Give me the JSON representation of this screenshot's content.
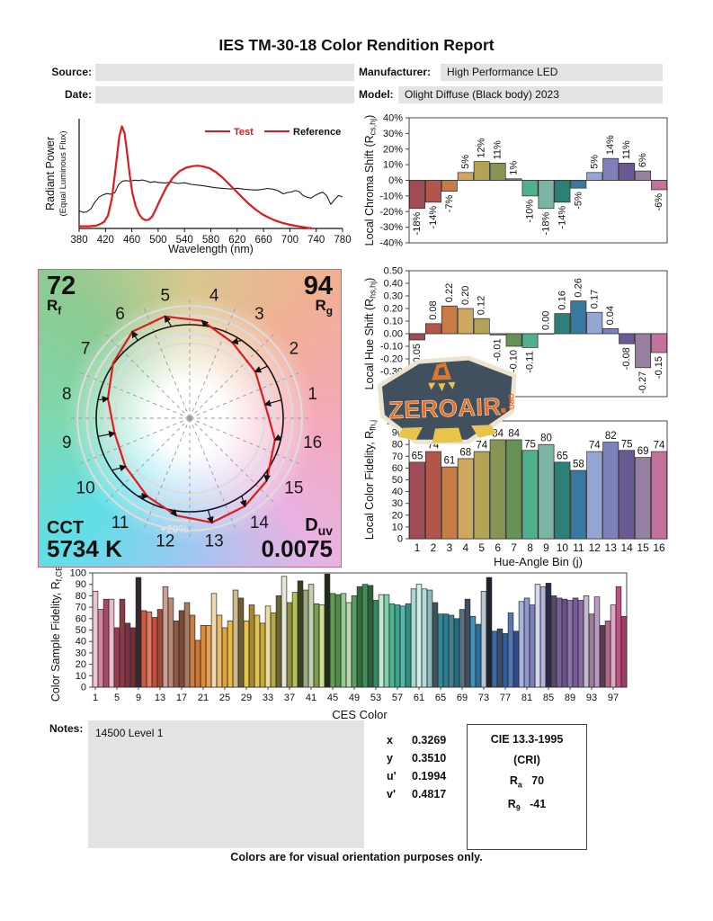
{
  "header": {
    "title": "IES TM-30-18 Color Rendition Report",
    "source_label": "Source:",
    "date_label": "Date:",
    "manufacturer_label": "Manufacturer:",
    "manufacturer": "High Performance LED",
    "model_label": "Model:",
    "model": "Olight Diffuse (Black body) 2023",
    "source_value": "",
    "date_value": ""
  },
  "watermark": {
    "line1": "ZEROAIR",
    "line2": "ORG"
  },
  "cvg": {
    "rf_value": "72",
    "r_letter": "R",
    "rf_sub": "f",
    "rg_value": "94",
    "rg_sub": "g",
    "cct_label": "CCT",
    "cct_value": "5734 K",
    "d_letter": "D",
    "duv_sub": "uv",
    "duv_value": "0.0075",
    "ring_label": "+20%",
    "bin_numbers": [
      "1",
      "2",
      "3",
      "4",
      "5",
      "6",
      "7",
      "8",
      "9",
      "10",
      "11",
      "12",
      "13",
      "14",
      "15",
      "16"
    ]
  },
  "hue_bin_colors": [
    "#a04b58",
    "#b25649",
    "#c67c44",
    "#cfa75e",
    "#b2a355",
    "#869455",
    "#679255",
    "#50b08b",
    "#7ab4a4",
    "#2d8077",
    "#39799f",
    "#95a6d4",
    "#7e80ba",
    "#6a5a94",
    "#97809f",
    "#c3729b"
  ],
  "notes": {
    "label": "Notes:",
    "text": "14500 Level 1"
  },
  "chromaticity": {
    "rows": [
      {
        "label": "x",
        "value": "0.3269"
      },
      {
        "label": "y",
        "value": "0.3510"
      },
      {
        "label": "u'",
        "value": "0.1994"
      },
      {
        "label": "v'",
        "value": "0.4817"
      }
    ]
  },
  "cie_box": {
    "title": "CIE 13.3-1995",
    "subtitle": "(CRI)",
    "ra_base": "R",
    "ra_sub": "a",
    "ra_value": "70",
    "r9_base": "R",
    "r9_sub": "9",
    "r9_value": "-41"
  },
  "footer": "Colors are for visual orientation purposes only.",
  "chart_data": [
    {
      "id": "spd",
      "type": "line",
      "xlabel": "Wavelength (nm)",
      "ylabel_line1": "Radiant Power",
      "ylabel_line2": "(Equal Luminous Flux)",
      "xlim": [
        380,
        780
      ],
      "xticks": [
        380,
        420,
        460,
        500,
        540,
        580,
        620,
        660,
        700,
        740,
        780
      ],
      "legend": [
        {
          "name": "Test",
          "color": "#e31a1c"
        },
        {
          "name": "Reference",
          "color": "#e31a1c",
          "text_color": "#111111"
        }
      ],
      "series": [
        {
          "name": "Test",
          "color": "#e31a1c",
          "width": 2.2,
          "points": [
            [
              380,
              0.02
            ],
            [
              395,
              0.02
            ],
            [
              405,
              0.025
            ],
            [
              412,
              0.04
            ],
            [
              418,
              0.06
            ],
            [
              424,
              0.12
            ],
            [
              430,
              0.28
            ],
            [
              436,
              0.58
            ],
            [
              441,
              0.84
            ],
            [
              445,
              0.93
            ],
            [
              449,
              0.87
            ],
            [
              453,
              0.68
            ],
            [
              457,
              0.48
            ],
            [
              461,
              0.32
            ],
            [
              466,
              0.2
            ],
            [
              471,
              0.13
            ],
            [
              476,
              0.09
            ],
            [
              481,
              0.075
            ],
            [
              486,
              0.08
            ],
            [
              491,
              0.11
            ],
            [
              496,
              0.17
            ],
            [
              502,
              0.25
            ],
            [
              512,
              0.37
            ],
            [
              522,
              0.46
            ],
            [
              532,
              0.52
            ],
            [
              542,
              0.553
            ],
            [
              552,
              0.567
            ],
            [
              560,
              0.572
            ],
            [
              568,
              0.565
            ],
            [
              578,
              0.548
            ],
            [
              588,
              0.512
            ],
            [
              598,
              0.462
            ],
            [
              608,
              0.402
            ],
            [
              618,
              0.342
            ],
            [
              628,
              0.28
            ],
            [
              638,
              0.222
            ],
            [
              648,
              0.172
            ],
            [
              658,
              0.13
            ],
            [
              668,
              0.098
            ],
            [
              678,
              0.072
            ],
            [
              688,
              0.052
            ],
            [
              698,
              0.037
            ],
            [
              708,
              0.025
            ],
            [
              718,
              0.015
            ],
            [
              728,
              0.006
            ],
            [
              734,
              0.002
            ]
          ]
        },
        {
          "name": "Reference",
          "color": "#1c1c1c",
          "width": 1.1,
          "points": [
            [
              380,
              0.16
            ],
            [
              386,
              0.147
            ],
            [
              392,
              0.152
            ],
            [
              398,
              0.18
            ],
            [
              404,
              0.24
            ],
            [
              410,
              0.285
            ],
            [
              416,
              0.305
            ],
            [
              422,
              0.318
            ],
            [
              428,
              0.312
            ],
            [
              434,
              0.325
            ],
            [
              440,
              0.4
            ],
            [
              446,
              0.432
            ],
            [
              452,
              0.436
            ],
            [
              458,
              0.43
            ],
            [
              464,
              0.44
            ],
            [
              470,
              0.436
            ],
            [
              476,
              0.442
            ],
            [
              482,
              0.434
            ],
            [
              488,
              0.42
            ],
            [
              494,
              0.427
            ],
            [
              500,
              0.42
            ],
            [
              510,
              0.415
            ],
            [
              520,
              0.422
            ],
            [
              530,
              0.41
            ],
            [
              540,
              0.416
            ],
            [
              550,
              0.402
            ],
            [
              560,
              0.395
            ],
            [
              570,
              0.388
            ],
            [
              580,
              0.378
            ],
            [
              590,
              0.37
            ],
            [
              600,
              0.364
            ],
            [
              610,
              0.36
            ],
            [
              620,
              0.366
            ],
            [
              630,
              0.358
            ],
            [
              640,
              0.353
            ],
            [
              650,
              0.35
            ],
            [
              658,
              0.356
            ],
            [
              666,
              0.365
            ],
            [
              674,
              0.358
            ],
            [
              682,
              0.344
            ],
            [
              690,
              0.315
            ],
            [
              696,
              0.327
            ],
            [
              702,
              0.332
            ],
            [
              708,
              0.345
            ],
            [
              714,
              0.336
            ],
            [
              720,
              0.3
            ],
            [
              726,
              0.285
            ],
            [
              732,
              0.276
            ],
            [
              738,
              0.3
            ],
            [
              744,
              0.318
            ],
            [
              750,
              0.33
            ],
            [
              756,
              0.298
            ],
            [
              762,
              0.22
            ],
            [
              768,
              0.263
            ],
            [
              774,
              0.3
            ],
            [
              780,
              0.287
            ]
          ]
        }
      ]
    },
    {
      "id": "local_chroma_shift",
      "type": "bar",
      "ylabel_pre": "Local Chroma Shift (R",
      "ylabel_sub": "cs,hj",
      "ylabel_post": ")",
      "ylim": [
        -40,
        40
      ],
      "ytick_step": 10,
      "ytick_suffix": "%",
      "categories": [
        1,
        2,
        3,
        4,
        5,
        6,
        7,
        8,
        9,
        10,
        11,
        12,
        13,
        14,
        15,
        16
      ],
      "values": [
        -18,
        -14,
        -7,
        5,
        12,
        11,
        1,
        -10,
        -18,
        -14,
        -5,
        5,
        14,
        11,
        6,
        -6
      ],
      "labels": [
        "-18%",
        "-14%",
        "-7%",
        "5%",
        "12%",
        "11%",
        "1%",
        "-10%",
        "-18%",
        "-14%",
        "-5%",
        "5%",
        "14%",
        "11%",
        "6%",
        "-6%"
      ]
    },
    {
      "id": "local_hue_shift",
      "type": "bar",
      "ylabel_pre": "Local Hue Shift (R",
      "ylabel_sub": "hs,hj",
      "ylabel_post": ")",
      "ylim": [
        -0.5,
        0.5
      ],
      "ytick_step": 0.1,
      "categories": [
        1,
        2,
        3,
        4,
        5,
        6,
        7,
        8,
        9,
        10,
        11,
        12,
        13,
        14,
        15,
        16
      ],
      "values": [
        -0.05,
        0.08,
        0.22,
        0.2,
        0.12,
        -0.01,
        -0.1,
        -0.11,
        0,
        0.16,
        0.26,
        0.17,
        0.04,
        -0.08,
        -0.27,
        -0.15
      ],
      "labels": [
        "-0.05",
        "0.08",
        "0.22",
        "0.20",
        "0.12",
        "-0.01",
        "-0.10",
        "-0.11",
        "0.00",
        "0.16",
        "0.26",
        "0.17",
        "0.04",
        "-0.08",
        "-0.27",
        "-0.15"
      ]
    },
    {
      "id": "local_color_fidelity",
      "type": "bar",
      "ylabel_pre": "Local Color Fidelity, R",
      "ylabel_sub": "fh,j",
      "xlabel": "Hue-Angle Bin (j)",
      "ylim": [
        0,
        100
      ],
      "ytick_step": 10,
      "categories": [
        1,
        2,
        3,
        4,
        5,
        6,
        7,
        8,
        9,
        10,
        11,
        12,
        13,
        14,
        15,
        16
      ],
      "values": [
        65,
        74,
        61,
        68,
        74,
        84,
        84,
        75,
        80,
        65,
        58,
        74,
        82,
        75,
        69,
        74
      ]
    },
    {
      "id": "ces_fidelity",
      "type": "bar",
      "ylabel_pre": "Color Sample Fidelity, R",
      "ylabel_sub": "f,CESi",
      "xlabel": "CES Color",
      "ylim": [
        0,
        100
      ],
      "ytick_step": 10,
      "xticks": [
        1,
        5,
        9,
        13,
        17,
        21,
        25,
        29,
        33,
        37,
        41,
        45,
        49,
        53,
        57,
        61,
        65,
        69,
        73,
        77,
        81,
        85,
        89,
        93,
        97
      ],
      "values": [
        84,
        68,
        77,
        77,
        52,
        77,
        56,
        52,
        96,
        67,
        66,
        61,
        68,
        88,
        78,
        58,
        67,
        74,
        63,
        41,
        54,
        54,
        82,
        63,
        52,
        58,
        85,
        78,
        58,
        72,
        63,
        56,
        71,
        65,
        80,
        97,
        74,
        83,
        93,
        85,
        90,
        73,
        72,
        99,
        82,
        81,
        82,
        74,
        80,
        88,
        90,
        89,
        76,
        81,
        81,
        73,
        72,
        71,
        73,
        86,
        90,
        86,
        85,
        74,
        64,
        64,
        63,
        60,
        68,
        77,
        62,
        55,
        84,
        96,
        49,
        51,
        47,
        65,
        49,
        75,
        78,
        72,
        90,
        88,
        91,
        80,
        78,
        77,
        76,
        78,
        76,
        80,
        64,
        79,
        54,
        58,
        72,
        88,
        62
      ],
      "colors": [
        "#eec3d3",
        "#d583a2",
        "#a84a63",
        "#e8bcc8",
        "#9c3a50",
        "#8e3946",
        "#7c3240",
        "#6e2e3a",
        "#33272a",
        "#cf5940",
        "#e07b62",
        "#c84b3b",
        "#9e4a38",
        "#c9a092",
        "#bb8a74",
        "#8d5a43",
        "#7e4a35",
        "#a97c5f",
        "#c97e42",
        "#d3762e",
        "#dd8a3a",
        "#e8a055",
        "#efd9b0",
        "#ecba6c",
        "#dfa23f",
        "#eab83f",
        "#cdb98a",
        "#6e5d33",
        "#e5c44a",
        "#a8862e",
        "#dec252",
        "#c9a832",
        "#eadc9a",
        "#b5a94e",
        "#6a6430",
        "#e2e6d4",
        "#8f8f42",
        "#b5c355",
        "#3a3f22",
        "#9aa982",
        "#c2d0b0",
        "#7d9a4e",
        "#cfe08e",
        "#1f2a1c",
        "#5f9e52",
        "#4c8f48",
        "#98c98e",
        "#bcd9b4",
        "#57a05e",
        "#2f6b3c",
        "#3f8f55",
        "#2c5e3a",
        "#2f8f62",
        "#c4e6d2",
        "#7ed0a8",
        "#4eb68e",
        "#35a58c",
        "#52b8a8",
        "#2f8f80",
        "#a8d8d2",
        "#d4ecea",
        "#b2dcdc",
        "#8fb8bc",
        "#3c5458",
        "#2f8a96",
        "#2a7e96",
        "#45808f",
        "#1f6e86",
        "#5a7082",
        "#3e4e5e",
        "#3f92b5",
        "#2a6e9e",
        "#b8c5d2",
        "#1d2430",
        "#3a6aa8",
        "#3d4a66",
        "#2f5e9e",
        "#5378b2",
        "#2c4a8e",
        "#a8b4dc",
        "#8f97cc",
        "#7a82be",
        "#d8d8ec",
        "#b4b4dc",
        "#2c2a44",
        "#564a66",
        "#75609a",
        "#6a4f8c",
        "#8a74a8",
        "#7a5a9c",
        "#8a68a4",
        "#c2bcd2",
        "#9a7f96",
        "#b89cc4",
        "#5e3a56",
        "#b06a88",
        "#e0a8c4",
        "#c24e86",
        "#a03a66"
      ]
    },
    {
      "id": "color_vector_graphic",
      "type": "vector",
      "rf": 72,
      "rg": 94,
      "cct": "5734 K",
      "duv": "0.0075",
      "bins": 16,
      "chroma_shift_pct": [
        -18,
        -14,
        -7,
        5,
        12,
        11,
        1,
        -10,
        -18,
        -14,
        -5,
        5,
        14,
        11,
        6,
        -6
      ],
      "hue_shift": [
        -0.05,
        0.08,
        0.22,
        0.2,
        0.12,
        -0.01,
        -0.1,
        -0.11,
        0,
        0.16,
        0.26,
        0.17,
        0.04,
        -0.08,
        -0.27,
        -0.15
      ],
      "ring_label": "+20%"
    }
  ]
}
